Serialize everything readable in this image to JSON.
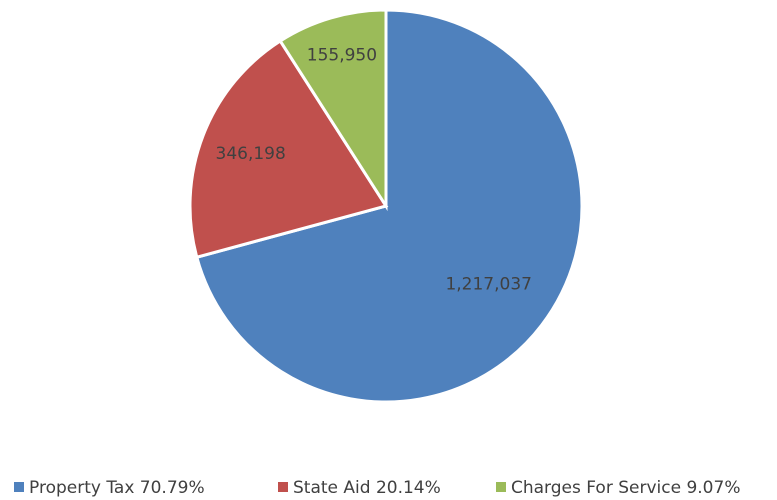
{
  "chart_data": {
    "type": "pie",
    "categories": [
      "Property Tax 70.79%",
      "State Aid 20.14%",
      "Charges For Service 9.07%"
    ],
    "values": [
      1217037,
      346198,
      155950
    ],
    "value_labels": [
      "1,217,037",
      "346,198",
      "155,950"
    ],
    "colors": [
      "#4f81bd",
      "#c0504d",
      "#9bbb59"
    ],
    "legend": "bottom"
  }
}
